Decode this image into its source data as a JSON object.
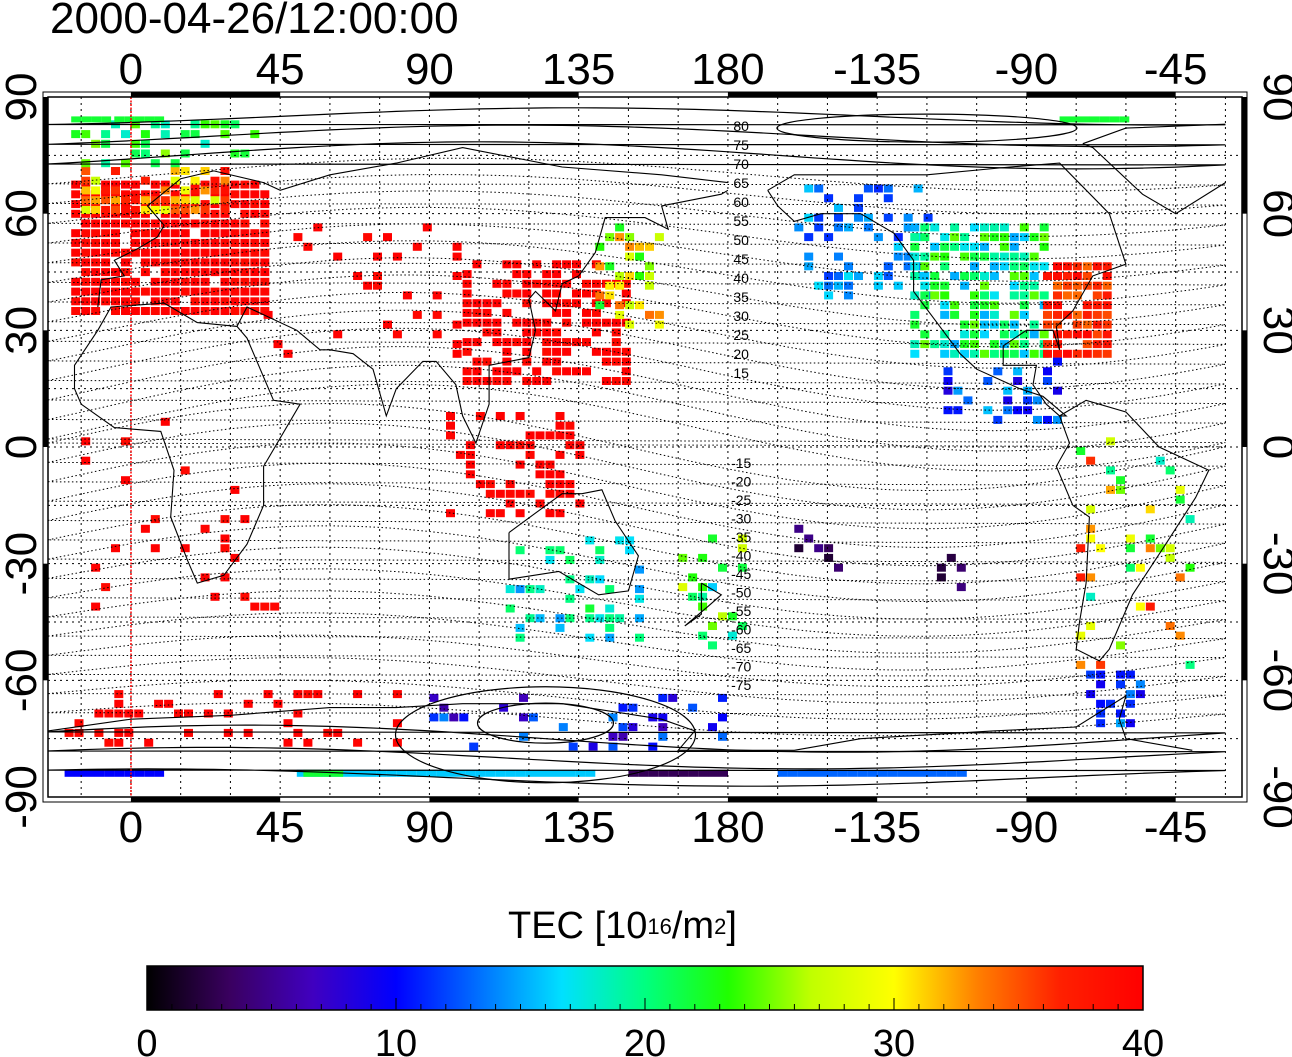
{
  "title": "2000-04-26/12:00:00",
  "map": {
    "lon_ticks": [
      "0",
      "45",
      "90",
      "135",
      "180",
      "-135",
      "-90",
      "-45"
    ],
    "lat_ticks": [
      "90",
      "60",
      "30",
      "0",
      "-30",
      "-60",
      "-90"
    ],
    "contour_labels_north": [
      "80",
      "75",
      "70",
      "65",
      "60",
      "55",
      "50",
      "45",
      "40",
      "35",
      "30",
      "25",
      "20",
      "15"
    ],
    "contour_labels_south": [
      "-15",
      "-20",
      "-25",
      "-30",
      "-35",
      "-40",
      "-45",
      "-50",
      "-55",
      "-60",
      "-65",
      "-70",
      "-75"
    ],
    "reference_meridian_color": "#ff0000",
    "grid": "dotted"
  },
  "colorbar": {
    "label_prefix": "TEC  [10",
    "label_exp1": "16",
    "label_mid": "/m",
    "label_exp2": "2",
    "label_suffix": "]",
    "min": 0,
    "max": 40,
    "ticks": [
      "0",
      "10",
      "20",
      "30",
      "40"
    ],
    "colormap": [
      "#000000",
      "#3a0060",
      "#4000c0",
      "#0000ff",
      "#0070ff",
      "#00e0ff",
      "#00ff80",
      "#20ff00",
      "#c0ff00",
      "#ffff00",
      "#ff8000",
      "#ff2000",
      "#ff0000"
    ]
  }
}
